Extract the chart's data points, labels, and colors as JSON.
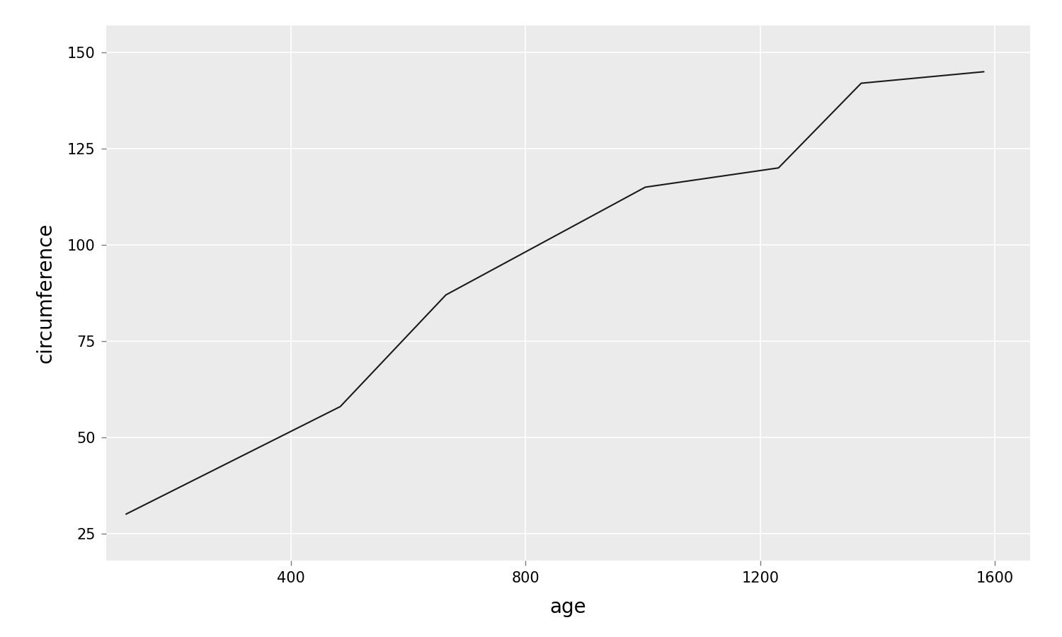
{
  "x": [
    118,
    484,
    664,
    1004,
    1231,
    1372,
    1582
  ],
  "y": [
    30.0,
    58.0,
    87.0,
    115.0,
    120.0,
    142.0,
    145.0
  ],
  "xlabel": "age",
  "ylabel": "circumference",
  "line_color": "#1a1a1a",
  "line_width": 1.5,
  "panel_bg": "#ebebeb",
  "outer_bg": "#ffffff",
  "grid_color": "#ffffff",
  "xlim": [
    85,
    1660
  ],
  "ylim": [
    18,
    157
  ],
  "xticks": [
    400,
    800,
    1200,
    1600
  ],
  "yticks": [
    25,
    50,
    75,
    100,
    125,
    150
  ],
  "xlabel_fontsize": 20,
  "ylabel_fontsize": 20,
  "tick_fontsize": 15
}
